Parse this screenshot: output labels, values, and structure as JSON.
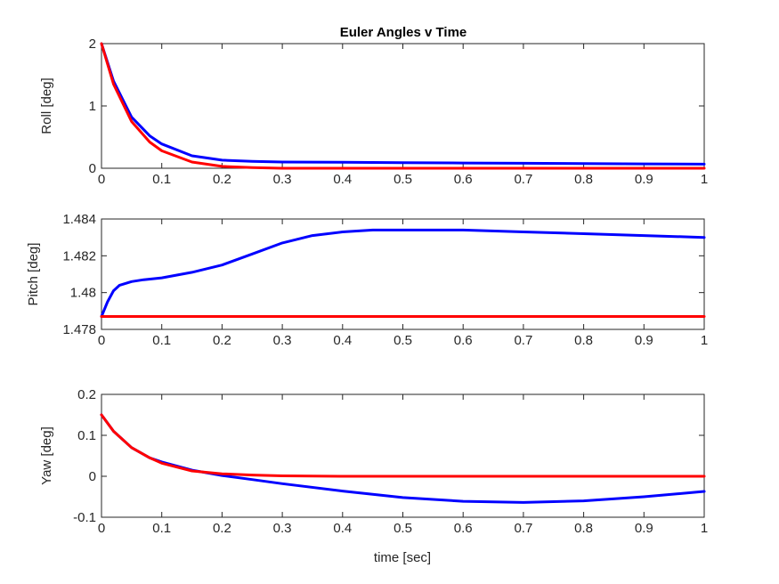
{
  "title": "Euler Angles v Time",
  "xlabel": "time [sec]",
  "chart_data": [
    {
      "type": "line",
      "title": "Euler Angles v Time",
      "xlabel": "",
      "ylabel": "Roll [deg]",
      "xlim": [
        0,
        1
      ],
      "ylim": [
        0,
        2
      ],
      "xticks": [
        "0",
        "0.1",
        "0.2",
        "0.3",
        "0.4",
        "0.5",
        "0.6",
        "0.7",
        "0.8",
        "0.9",
        "1"
      ],
      "yticks": [
        "0",
        "1",
        "2"
      ],
      "grid": false,
      "series": [
        {
          "color": "#0000ff",
          "x": [
            0,
            0.02,
            0.05,
            0.08,
            0.1,
            0.15,
            0.2,
            0.25,
            0.3,
            0.4,
            0.5,
            0.6,
            0.7,
            0.8,
            0.9,
            1.0
          ],
          "y": [
            2.0,
            1.4,
            0.82,
            0.52,
            0.39,
            0.2,
            0.13,
            0.11,
            0.1,
            0.095,
            0.09,
            0.085,
            0.08,
            0.075,
            0.07,
            0.065
          ]
        },
        {
          "color": "#ff0000",
          "x": [
            0,
            0.02,
            0.05,
            0.08,
            0.1,
            0.15,
            0.2,
            0.25,
            0.3,
            0.4,
            0.5,
            0.6,
            0.7,
            0.8,
            0.9,
            1.0
          ],
          "y": [
            2.0,
            1.35,
            0.75,
            0.42,
            0.28,
            0.1,
            0.03,
            0.01,
            0.0,
            0.0,
            0.0,
            0.0,
            0.0,
            0.0,
            0.0,
            0.0
          ]
        }
      ]
    },
    {
      "type": "line",
      "xlabel": "",
      "ylabel": "Pitch [deg]",
      "xlim": [
        0,
        1
      ],
      "ylim": [
        1.478,
        1.484
      ],
      "xticks": [
        "0",
        "0.1",
        "0.2",
        "0.3",
        "0.4",
        "0.5",
        "0.6",
        "0.7",
        "0.8",
        "0.9",
        "1"
      ],
      "yticks": [
        "1.478",
        "1.48",
        "1.482",
        "1.484"
      ],
      "grid": false,
      "series": [
        {
          "color": "#0000ff",
          "x": [
            0,
            0.01,
            0.02,
            0.03,
            0.05,
            0.07,
            0.1,
            0.15,
            0.2,
            0.25,
            0.3,
            0.35,
            0.4,
            0.45,
            0.5,
            0.55,
            0.6,
            0.7,
            0.8,
            0.9,
            1.0
          ],
          "y": [
            1.4787,
            1.4795,
            1.4801,
            1.4804,
            1.4806,
            1.4807,
            1.4808,
            1.4811,
            1.4815,
            1.4821,
            1.4827,
            1.4831,
            1.4833,
            1.4834,
            1.4834,
            1.4834,
            1.4834,
            1.4833,
            1.4832,
            1.4831,
            1.483
          ]
        },
        {
          "color": "#ff0000",
          "x": [
            0,
            1.0
          ],
          "y": [
            1.4787,
            1.4787
          ]
        }
      ]
    },
    {
      "type": "line",
      "xlabel": "time [sec]",
      "ylabel": "Yaw [deg]",
      "xlim": [
        0,
        1
      ],
      "ylim": [
        -0.1,
        0.2
      ],
      "xticks": [
        "0",
        "0.1",
        "0.2",
        "0.3",
        "0.4",
        "0.5",
        "0.6",
        "0.7",
        "0.8",
        "0.9",
        "1"
      ],
      "yticks": [
        "-0.1",
        "0",
        "0.1",
        "0.2"
      ],
      "grid": false,
      "series": [
        {
          "color": "#0000ff",
          "x": [
            0,
            0.02,
            0.05,
            0.08,
            0.1,
            0.15,
            0.2,
            0.25,
            0.3,
            0.4,
            0.5,
            0.6,
            0.7,
            0.8,
            0.9,
            1.0
          ],
          "y": [
            0.15,
            0.11,
            0.07,
            0.045,
            0.035,
            0.015,
            0.002,
            -0.008,
            -0.018,
            -0.036,
            -0.052,
            -0.061,
            -0.064,
            -0.06,
            -0.05,
            -0.037
          ]
        },
        {
          "color": "#ff0000",
          "x": [
            0,
            0.02,
            0.05,
            0.08,
            0.1,
            0.15,
            0.2,
            0.25,
            0.3,
            0.4,
            0.5,
            0.6,
            0.7,
            0.8,
            0.9,
            1.0
          ],
          "y": [
            0.15,
            0.11,
            0.07,
            0.045,
            0.032,
            0.013,
            0.006,
            0.003,
            0.001,
            0.0,
            0.0,
            0.0,
            0.0,
            0.0,
            0.0,
            0.0
          ]
        }
      ]
    }
  ]
}
